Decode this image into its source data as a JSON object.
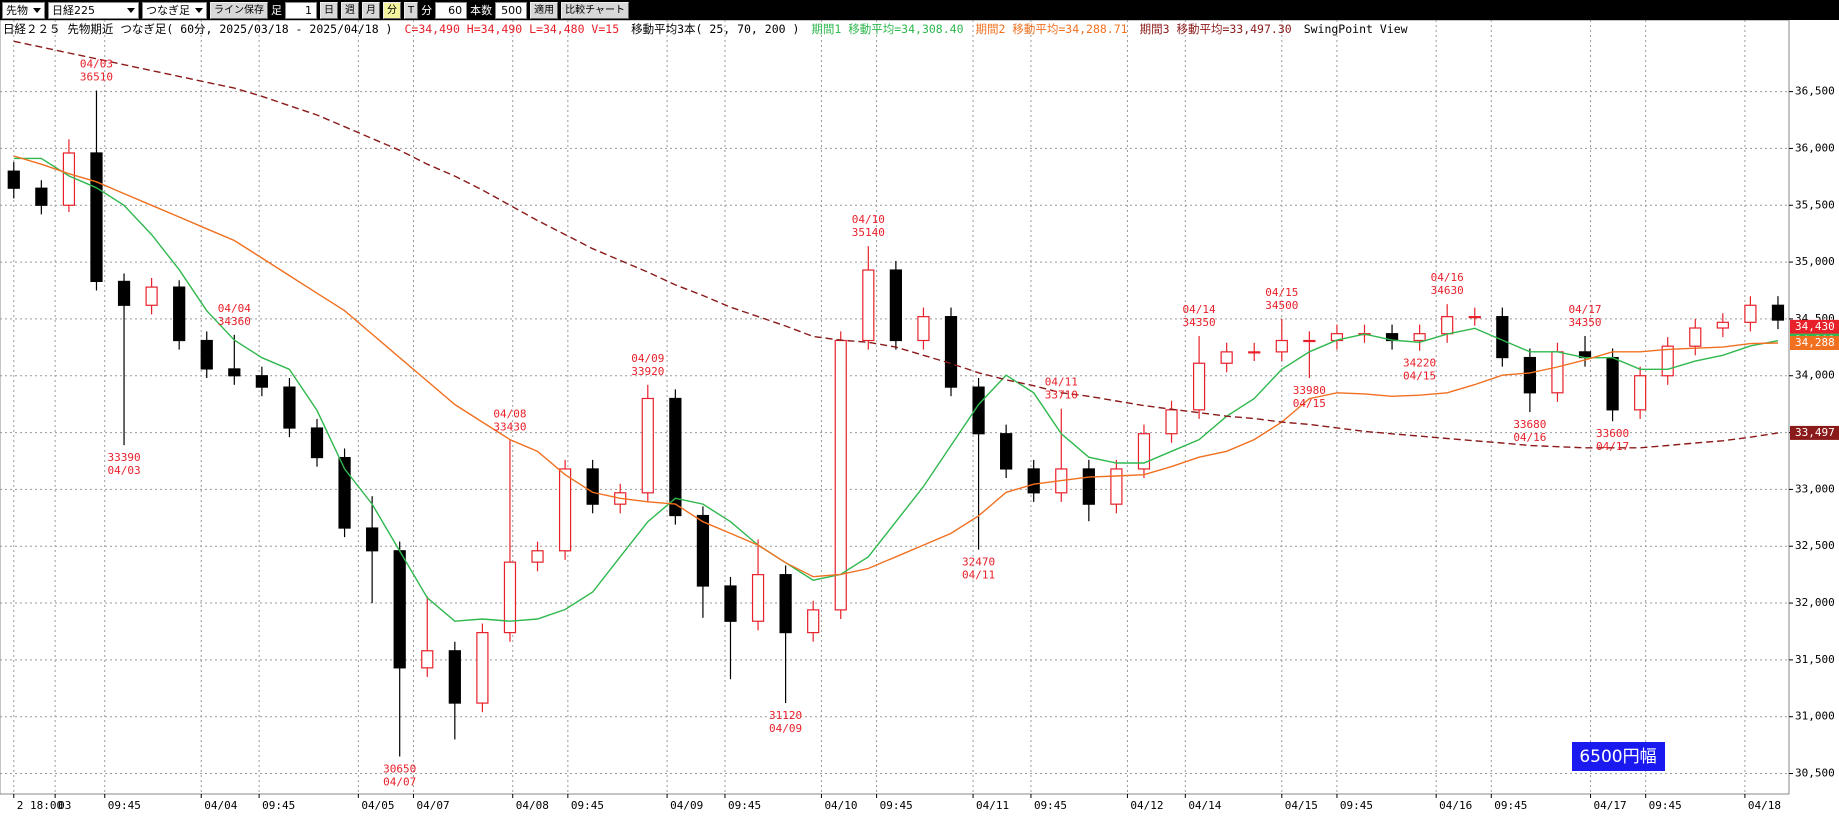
{
  "toolbar": {
    "market": "先物",
    "symbol": "日経225",
    "chart_type": "つなぎ足",
    "save_line": "ライン保存",
    "bar_label": "足",
    "bar_count": 1,
    "periods": [
      "日",
      "週",
      "月",
      "分",
      "T"
    ],
    "unit": "分",
    "interval": 60,
    "bars_label": "本数",
    "bars": 500,
    "apply": "適用",
    "compare": "比較チャート"
  },
  "chart_data": {
    "type": "candlestick",
    "title": "日経２２５ 先物期近 つなぎ足( 60分, 2025/03/18 - 2025/04/18 )",
    "ohlc_summary": "C=34,490 H=34,490 L=34,480 V=15",
    "ma_title": "移動平均3本( 25, 70, 200 )",
    "view_label": "SwingPoint View",
    "up_color": "#e8202a",
    "down_color": "#000000",
    "open": [
      35800,
      35650,
      35500,
      35960,
      34830,
      34620,
      34780,
      34310,
      34060,
      34000,
      33900,
      33540,
      33280,
      32660,
      32460,
      31430,
      31580,
      31120,
      31740,
      32360,
      32460,
      33180,
      32870,
      32970,
      33800,
      32770,
      32150,
      31840,
      32250,
      31740,
      31940,
      34310,
      34930,
      34310,
      34520,
      33900,
      33490,
      33180,
      32970,
      33180,
      32870,
      33180,
      33490,
      33700,
      34110,
      34210,
      34210,
      34310,
      34310,
      34370,
      34370,
      34310,
      34370,
      34520,
      34520,
      34160,
      33850,
      34210,
      34160,
      33700,
      34000,
      34260,
      34420,
      34470,
      34620
    ],
    "high": [
      35880,
      35720,
      36080,
      36510,
      34900,
      34860,
      34840,
      34390,
      34360,
      34080,
      33980,
      33620,
      33360,
      32940,
      32540,
      32060,
      31660,
      31820,
      33430,
      32540,
      33260,
      33260,
      33050,
      33920,
      33880,
      32850,
      32230,
      32560,
      32330,
      32020,
      34390,
      35140,
      35010,
      34600,
      34600,
      33980,
      33570,
      33260,
      33710,
      33260,
      33260,
      33570,
      33780,
      34350,
      34290,
      34290,
      34500,
      34390,
      34450,
      34450,
      34450,
      34450,
      34630,
      34600,
      34600,
      34240,
      34290,
      34350,
      34240,
      34080,
      34340,
      34500,
      34550,
      34700,
      34700
    ],
    "low": [
      35560,
      35420,
      35440,
      34750,
      33390,
      34540,
      34230,
      33980,
      33920,
      33820,
      33460,
      33200,
      32580,
      32000,
      30650,
      31350,
      30800,
      31040,
      31660,
      32280,
      32380,
      32790,
      32790,
      32890,
      32690,
      31870,
      31330,
      31760,
      31120,
      31660,
      31860,
      34230,
      34230,
      34230,
      33820,
      32470,
      33100,
      32890,
      32890,
      32720,
      32790,
      33100,
      33410,
      33620,
      34030,
      34130,
      34130,
      33980,
      34230,
      34290,
      34230,
      34220,
      34290,
      34440,
      34080,
      33680,
      33770,
      34080,
      33600,
      33620,
      33920,
      34180,
      34340,
      34390,
      34410
    ],
    "close": [
      35650,
      35500,
      35960,
      34830,
      34620,
      34780,
      34310,
      34060,
      34000,
      33900,
      33540,
      33280,
      32660,
      32460,
      31430,
      31580,
      31120,
      31740,
      32360,
      32460,
      33180,
      32870,
      32970,
      33800,
      32770,
      32150,
      31840,
      32250,
      31740,
      31940,
      34310,
      34930,
      34310,
      34520,
      33900,
      33490,
      33180,
      32970,
      33180,
      32870,
      33180,
      33490,
      33700,
      34110,
      34210,
      34210,
      34310,
      34310,
      34370,
      34370,
      34310,
      34370,
      34520,
      34520,
      34160,
      33850,
      34210,
      34160,
      33700,
      34000,
      34260,
      34420,
      34470,
      34620,
      34490
    ],
    "series": [
      {
        "name": "期間1 移動平均=34,308.40",
        "color": "#2fb84e",
        "style": "solid",
        "values": [
          35912,
          35912,
          35758,
          35654,
          35500,
          35242,
          34933,
          34572,
          34314,
          34159,
          34057,
          33695,
          33180,
          32871,
          32458,
          32046,
          31840,
          31860,
          31840,
          31860,
          31943,
          32097,
          32407,
          32716,
          32922,
          32871,
          32716,
          32510,
          32355,
          32201,
          32252,
          32407,
          32716,
          33025,
          33386,
          33747,
          34005,
          33850,
          33489,
          33283,
          33232,
          33232,
          33335,
          33438,
          33644,
          33799,
          34057,
          34211,
          34314,
          34366,
          34314,
          34294,
          34366,
          34417,
          34314,
          34211,
          34211,
          34159,
          34159,
          34057,
          34057,
          34129,
          34180,
          34263,
          34308
        ]
      },
      {
        "name": "期間2 移動平均=34,288.71",
        "color": "#f07020",
        "style": "solid",
        "values": [
          35933,
          35861,
          35778,
          35706,
          35603,
          35500,
          35397,
          35293,
          35190,
          35036,
          34881,
          34726,
          34572,
          34366,
          34159,
          33953,
          33747,
          33592,
          33438,
          33335,
          33129,
          32974,
          32922,
          32891,
          32871,
          32716,
          32613,
          32510,
          32355,
          32232,
          32252,
          32304,
          32407,
          32510,
          32613,
          32768,
          32974,
          33046,
          33077,
          33108,
          33118,
          33129,
          33201,
          33283,
          33335,
          33438,
          33592,
          33799,
          33850,
          33840,
          33819,
          33829,
          33850,
          33922,
          34005,
          34025,
          34077,
          34139,
          34211,
          34211,
          34232,
          34242,
          34252,
          34283,
          34288
        ]
      },
      {
        "name": "期間3 移動平均=33,497.30",
        "color": "#8b1a1a",
        "style": "dashed",
        "values": [
          36943,
          36892,
          36840,
          36789,
          36737,
          36685,
          36634,
          36582,
          36531,
          36459,
          36376,
          36294,
          36191,
          36087,
          35984,
          35861,
          35757,
          35634,
          35500,
          35366,
          35242,
          35118,
          35015,
          34912,
          34799,
          34706,
          34603,
          34520,
          34438,
          34345,
          34314,
          34294,
          34252,
          34180,
          34108,
          34026,
          33964,
          33912,
          33850,
          33819,
          33778,
          33737,
          33706,
          33675,
          33644,
          33624,
          33592,
          33572,
          33541,
          33510,
          33489,
          33469,
          33448,
          33428,
          33408,
          33386,
          33376,
          33366,
          33366,
          33366,
          33386,
          33408,
          33428,
          33459,
          33497
        ]
      }
    ],
    "xlim": [
      -0.5,
      64.4
    ],
    "xticks": [
      {
        "value": 0,
        "label": "2 18:00"
      },
      {
        "value": 1.5,
        "label": "03"
      },
      {
        "value": 3.3,
        "label": "09:45"
      },
      {
        "value": 6.8,
        "label": "04/04"
      },
      {
        "value": 8.9,
        "label": "09:45"
      },
      {
        "value": 12.5,
        "label": "04/05"
      },
      {
        "value": 14.5,
        "label": "04/07"
      },
      {
        "value": 18.1,
        "label": "04/08"
      },
      {
        "value": 20.1,
        "label": "09:45"
      },
      {
        "value": 23.7,
        "label": "04/09"
      },
      {
        "value": 25.8,
        "label": "09:45"
      },
      {
        "value": 29.3,
        "label": "04/10"
      },
      {
        "value": 31.3,
        "label": "09:45"
      },
      {
        "value": 34.8,
        "label": "04/11"
      },
      {
        "value": 36.9,
        "label": "09:45"
      },
      {
        "value": 40.4,
        "label": "04/12"
      },
      {
        "value": 42.5,
        "label": "04/14"
      },
      {
        "value": 46,
        "label": "04/15"
      },
      {
        "value": 48,
        "label": "09:45"
      },
      {
        "value": 51.6,
        "label": "04/16"
      },
      {
        "value": 53.6,
        "label": "09:45"
      },
      {
        "value": 57.2,
        "label": "04/17"
      },
      {
        "value": 59.2,
        "label": "09:45"
      },
      {
        "value": 62.8,
        "label": "04/18"
      }
    ],
    "ylim": [
      30320,
      37130
    ],
    "yticks": [
      {
        "value": 30500,
        "label": "30,500"
      },
      {
        "value": 31000,
        "label": "31,000"
      },
      {
        "value": 31500,
        "label": "31,500"
      },
      {
        "value": 32000,
        "label": "32,000"
      },
      {
        "value": 32500,
        "label": "32,500"
      },
      {
        "value": 33000,
        "label": "33,000"
      },
      {
        "value": 33500,
        "label": "33,500"
      },
      {
        "value": 34000,
        "label": "34,000"
      },
      {
        "value": 34500,
        "label": "34,500"
      },
      {
        "value": 35000,
        "label": "35,000"
      },
      {
        "value": 35500,
        "label": "35,500"
      },
      {
        "value": 36000,
        "label": "36,000"
      },
      {
        "value": 36500,
        "label": "36,500"
      }
    ],
    "grid": true,
    "price_markers": [
      {
        "value": 34430,
        "label": "34,430",
        "color": "#e8202a"
      },
      {
        "value": 34308,
        "label": "34,308",
        "color": "#2fb84e"
      },
      {
        "value": 34288,
        "label": "34,288",
        "color": "#f07020"
      },
      {
        "value": 33497,
        "label": "33,497",
        "color": "#8b1a1a"
      }
    ],
    "annotations": [
      {
        "x": 3,
        "side": "high",
        "date": "04/03",
        "price": 36510
      },
      {
        "x": 4,
        "side": "low",
        "date": "04/03",
        "price": 33390
      },
      {
        "x": 8,
        "side": "high",
        "date": "04/04",
        "price": 34360
      },
      {
        "x": 14,
        "side": "low",
        "date": "04/07",
        "price": 30650
      },
      {
        "x": 18,
        "side": "high",
        "date": "04/08",
        "price": 33430
      },
      {
        "x": 23,
        "side": "high",
        "date": "04/09",
        "price": 33920
      },
      {
        "x": 28,
        "side": "low",
        "date": "04/09",
        "price": 31120
      },
      {
        "x": 31,
        "side": "high",
        "date": "04/10",
        "price": 35140
      },
      {
        "x": 35,
        "side": "low",
        "date": "04/11",
        "price": 32470
      },
      {
        "x": 38,
        "side": "high",
        "date": "04/11",
        "price": 33710
      },
      {
        "x": 43,
        "side": "high",
        "date": "04/14",
        "price": 34350
      },
      {
        "x": 46,
        "side": "high",
        "date": "04/15",
        "price": 34500
      },
      {
        "x": 47,
        "side": "low",
        "date": "04/15",
        "price": 33980
      },
      {
        "x": 51,
        "side": "low",
        "date": "04/15",
        "price": 34220
      },
      {
        "x": 52,
        "side": "high",
        "date": "04/16",
        "price": 34630
      },
      {
        "x": 55,
        "side": "low",
        "date": "04/16",
        "price": 33680
      },
      {
        "x": 57,
        "side": "high",
        "date": "04/17",
        "price": 34350
      },
      {
        "x": 58,
        "side": "low",
        "date": "04/17",
        "price": 33600
      }
    ],
    "annotation_color": "#e8202a",
    "badge": "6500円幅"
  }
}
